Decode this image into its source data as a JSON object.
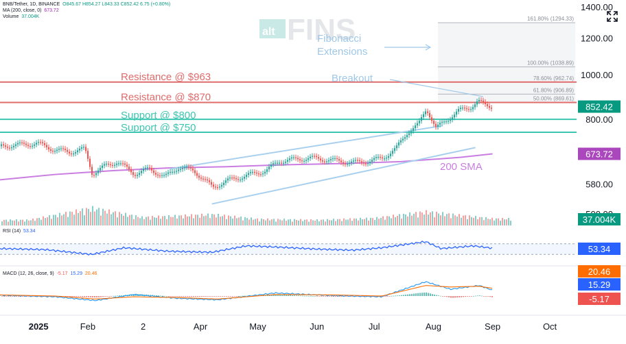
{
  "header": {
    "symbol_line": "BNB/Tether, 1D, BINANCE",
    "ohlc": "O845.67  H854.27  L843.33  C852.42  6.75 (+0.80%)",
    "ma_label": "MA (200, close, 0)",
    "ma_value": "673.72",
    "volume_label": "Volume",
    "volume_value": "37.004K"
  },
  "watermark": {
    "small": "alt",
    "big": "FINS"
  },
  "colors": {
    "resistance": "#e06b6b",
    "support": "#3cc5b0",
    "channel": "#a8d0ee",
    "ma": "#c97de0",
    "up": "#26a69a",
    "down": "#ef5350",
    "rsi": "#2962ff",
    "macd": "#2196f3",
    "signal": "#ff6d00",
    "price_tag": "#089981",
    "ma_tag": "#ab47bc",
    "annotation": "#9fc8e8"
  },
  "annotations": {
    "res1": "Resistance @ $963",
    "res2": "Resistance @ $870",
    "sup1": "Support @ $800",
    "sup2": "Support @ $750",
    "breakout": "Breakout",
    "fib_line1": "Fibonacci",
    "fib_line2": "Extensions",
    "sma": "200 SMA"
  },
  "fib_levels": [
    {
      "label": "161.80% (1294.33)",
      "value": 1294.33
    },
    {
      "label": "100.00% (1038.89)",
      "value": 1038.89
    },
    {
      "label": "78.60% (962.74)",
      "value": 962.74
    },
    {
      "label": "61.80% (906.89)",
      "value": 906.89
    },
    {
      "label": "50.00% (869.61)",
      "value": 869.61
    }
  ],
  "tags": {
    "price": "852.42",
    "ma": "673.72",
    "volume": "37.004K",
    "rsi": "53.34",
    "macd_a": "20.46",
    "macd_b": "15.29",
    "macd_c": "-5.17"
  },
  "rsi_panel": {
    "label": "RSI (14)",
    "value": "53.34"
  },
  "macd_panel": {
    "label": "MACD (12, 26, close, 9)",
    "v1": "-5.17",
    "v2": "15.29",
    "v3": "20.46"
  },
  "chart_data": {
    "type": "line",
    "title": "BNB/Tether, 1D, BINANCE",
    "y_scale": "log",
    "y_ticks": [
      "1400.00",
      "1200.00",
      "1000.00",
      "800.00",
      "580.00",
      "500.00"
    ],
    "y_tick_values": [
      1400,
      1200,
      1000,
      800,
      580,
      500
    ],
    "x_ticks": [
      "2025",
      "Feb",
      "2",
      "Apr",
      "May",
      "Jun",
      "Jul",
      "Aug",
      "Sep",
      "Oct"
    ],
    "x_tick_dates": [
      "2025-01-01",
      "2025-02-01",
      "2025-03-02",
      "2025-04-01",
      "2025-05-01",
      "2025-06-01",
      "2025-07-01",
      "2025-08-01",
      "2025-09-01",
      "2025-10-01"
    ],
    "x_range": [
      "2024-12-17",
      "2025-10-15"
    ],
    "y_range": [
      470,
      1420
    ],
    "grid": false,
    "price_series": {
      "name": "BNB/Tether",
      "x": [
        "2024-12-17",
        "2024-12-28",
        "2025-01-05",
        "2025-01-14",
        "2025-01-22",
        "2025-01-30",
        "2025-02-03",
        "2025-02-10",
        "2025-02-16",
        "2025-02-25",
        "2025-03-05",
        "2025-03-13",
        "2025-03-20",
        "2025-03-28",
        "2025-04-07",
        "2025-04-15",
        "2025-04-25",
        "2025-05-05",
        "2025-05-12",
        "2025-05-20",
        "2025-05-28",
        "2025-06-05",
        "2025-06-12",
        "2025-06-20",
        "2025-06-28",
        "2025-07-05",
        "2025-07-12",
        "2025-07-18",
        "2025-07-24",
        "2025-07-28",
        "2025-08-02",
        "2025-08-08",
        "2025-08-14",
        "2025-08-20",
        "2025-08-24",
        "2025-08-28",
        "2025-09-01"
      ],
      "values": [
        700,
        705,
        710,
        688,
        680,
        690,
        610,
        635,
        648,
        610,
        625,
        600,
        630,
        620,
        570,
        590,
        605,
        620,
        650,
        655,
        660,
        655,
        650,
        645,
        650,
        660,
        690,
        750,
        780,
        845,
        765,
        800,
        835,
        850,
        875,
        858,
        852
      ]
    },
    "ma_series": {
      "name": "MA (200, close, 0)",
      "x": [
        "2024-12-17",
        "2025-01-15",
        "2025-02-15",
        "2025-03-15",
        "2025-04-15",
        "2025-05-15",
        "2025-06-15",
        "2025-07-15",
        "2025-08-15",
        "2025-09-01"
      ],
      "values": [
        592,
        608,
        620,
        628,
        632,
        638,
        642,
        648,
        662,
        673.72
      ]
    },
    "levels": [
      {
        "name": "Resistance @ $963",
        "value": 963
      },
      {
        "name": "Resistance @ $870",
        "value": 870
      },
      {
        "name": "Support @ $800",
        "value": 800
      },
      {
        "name": "Support @ $750",
        "value": 750
      }
    ],
    "channel": {
      "upper": {
        "x": [
          "2025-03-16",
          "2025-08-06"
        ],
        "values": [
          625,
          775
        ]
      },
      "lower": {
        "x": [
          "2025-04-07",
          "2025-08-23"
        ],
        "values": [
          525,
          695
        ]
      }
    },
    "volume": {
      "name": "Volume",
      "x": [
        "2025-01-01",
        "2025-02-03",
        "2025-03-01",
        "2025-04-07",
        "2025-05-01",
        "2025-06-01",
        "2025-07-01",
        "2025-07-28",
        "2025-08-15",
        "2025-09-01"
      ],
      "values": [
        30,
        95,
        45,
        60,
        35,
        30,
        40,
        75,
        55,
        37.004
      ],
      "unit": "K"
    },
    "rsi": {
      "name": "RSI (14)",
      "x": [
        "2024-12-17",
        "2025-01-10",
        "2025-02-03",
        "2025-02-20",
        "2025-03-15",
        "2025-04-07",
        "2025-04-25",
        "2025-05-10",
        "2025-06-01",
        "2025-06-20",
        "2025-07-05",
        "2025-07-28",
        "2025-08-05",
        "2025-08-22",
        "2025-09-01"
      ],
      "values": [
        52,
        48,
        30,
        55,
        42,
        38,
        62,
        58,
        50,
        46,
        55,
        78,
        52,
        62,
        53.34
      ],
      "ylim": [
        0,
        100
      ]
    },
    "macd": {
      "name": "MACD (12, 26, close, 9)",
      "x": [
        "2024-12-17",
        "2025-01-15",
        "2025-02-05",
        "2025-02-25",
        "2025-03-20",
        "2025-04-10",
        "2025-05-10",
        "2025-06-10",
        "2025-07-05",
        "2025-07-28",
        "2025-08-10",
        "2025-08-25",
        "2025-09-01"
      ],
      "macd": [
        2,
        -2,
        -12,
        4,
        -6,
        -10,
        8,
        1,
        -2,
        38,
        18,
        28,
        15.29
      ],
      "signal": [
        3,
        0,
        -8,
        -2,
        -4,
        -8,
        4,
        3,
        0,
        28,
        24,
        26,
        20.46
      ],
      "histogram": [
        -1,
        -2,
        -4,
        6,
        -2,
        -2,
        4,
        -2,
        -2,
        10,
        -6,
        2,
        -5.17
      ]
    }
  }
}
